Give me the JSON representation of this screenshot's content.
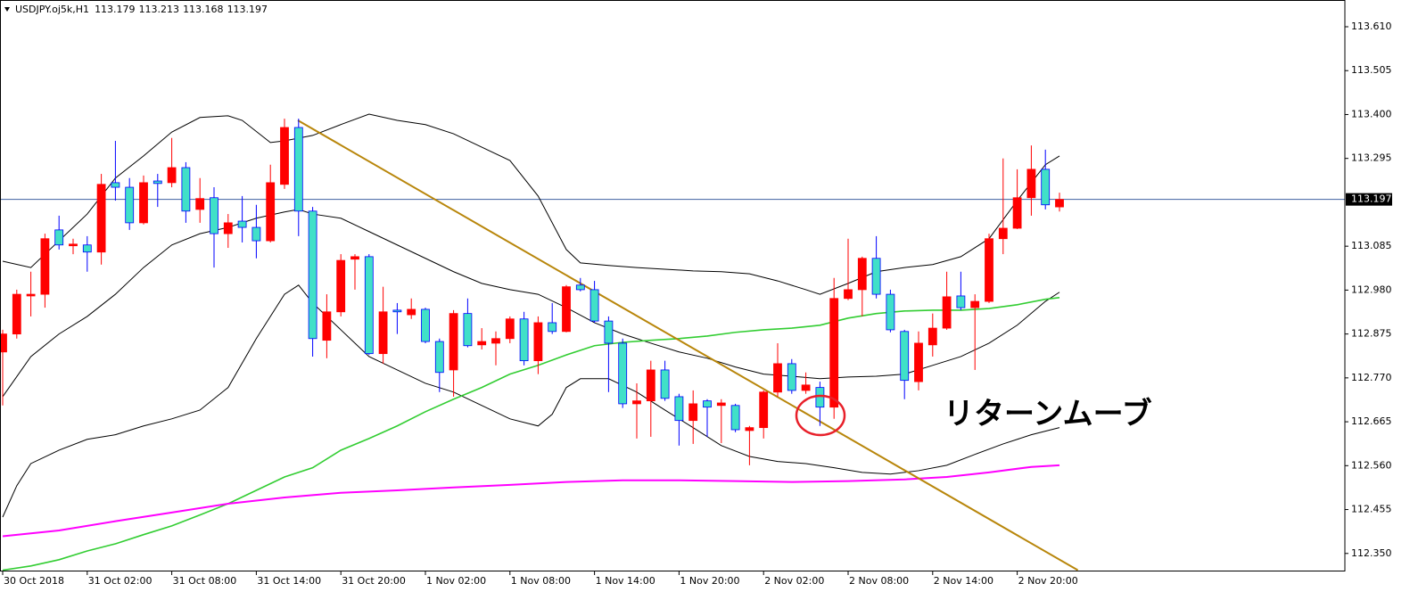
{
  "chart_data": {
    "type": "candlestick",
    "symbol": "USDJPY.oj5k,H1",
    "header_values": [
      113.179,
      113.213,
      113.168,
      113.197
    ],
    "annotation": "リターンムーブ",
    "categories": [
      "30 Oct 2018",
      null,
      null,
      null,
      null,
      null,
      "31 Oct 02:00",
      null,
      null,
      null,
      null,
      null,
      "31 Oct 08:00",
      null,
      null,
      null,
      null,
      null,
      "31 Oct 14:00",
      null,
      null,
      null,
      null,
      null,
      "31 Oct 20:00",
      null,
      null,
      null,
      null,
      null,
      "1 Nov 02:00",
      null,
      null,
      null,
      null,
      null,
      "1 Nov 08:00",
      null,
      null,
      null,
      null,
      null,
      "1 Nov 14:00",
      null,
      null,
      null,
      null,
      null,
      "1 Nov 20:00",
      null,
      null,
      null,
      null,
      null,
      "2 Nov 02:00",
      null,
      null,
      null,
      null,
      null,
      "2 Nov 08:00",
      null,
      null,
      null,
      null,
      null,
      "2 Nov 14:00",
      null,
      null,
      null,
      null,
      null,
      "2 Nov 20:00",
      null,
      null,
      null
    ],
    "open": [
      112.832,
      112.875,
      112.966,
      112.97,
      113.124,
      113.086,
      113.088,
      113.071,
      113.237,
      113.226,
      113.141,
      113.241,
      113.237,
      113.273,
      113.173,
      113.201,
      113.115,
      113.145,
      113.13,
      113.098,
      113.233,
      113.369,
      113.169,
      112.86,
      112.928,
      113.054,
      113.06,
      112.828,
      112.932,
      112.921,
      112.934,
      112.857,
      112.789,
      112.924,
      112.849,
      112.853,
      112.864,
      112.911,
      112.811,
      112.902,
      112.881,
      112.992,
      112.981,
      112.906,
      112.853,
      112.708,
      112.715,
      112.789,
      112.725,
      112.668,
      112.715,
      112.704,
      112.704,
      112.644,
      112.651,
      112.736,
      112.804,
      112.74,
      112.747,
      112.7,
      112.96,
      112.981,
      113.056,
      112.97,
      112.881,
      112.761,
      112.849,
      112.889,
      112.966,
      112.938,
      112.953,
      113.103,
      113.128,
      113.201,
      113.269,
      113.179
    ],
    "high": [
      112.885,
      112.981,
      113.024,
      113.115,
      113.158,
      113.103,
      113.109,
      113.258,
      113.337,
      113.248,
      113.254,
      113.258,
      113.344,
      113.286,
      113.248,
      113.226,
      113.162,
      113.205,
      113.184,
      113.28,
      113.39,
      113.39,
      113.179,
      112.97,
      113.066,
      113.066,
      113.066,
      112.988,
      112.949,
      112.96,
      112.938,
      112.864,
      112.932,
      112.96,
      112.889,
      112.881,
      112.917,
      112.928,
      112.917,
      112.949,
      112.992,
      113.009,
      113.002,
      112.917,
      112.864,
      112.757,
      112.811,
      112.811,
      112.732,
      112.74,
      112.719,
      112.719,
      112.708,
      112.655,
      112.74,
      112.853,
      112.815,
      112.783,
      112.761,
      113.009,
      113.103,
      113.06,
      113.109,
      112.981,
      112.885,
      112.881,
      112.924,
      113.024,
      113.024,
      112.97,
      113.115,
      113.295,
      113.269,
      113.326,
      113.316,
      113.213
    ],
    "low": [
      112.704,
      112.864,
      112.917,
      112.938,
      113.077,
      113.066,
      113.024,
      113.041,
      113.194,
      113.124,
      113.137,
      113.179,
      113.226,
      113.141,
      113.141,
      113.034,
      113.081,
      113.094,
      113.056,
      113.094,
      113.222,
      113.109,
      112.821,
      112.817,
      112.917,
      112.981,
      112.825,
      112.804,
      112.875,
      112.911,
      112.853,
      112.736,
      112.725,
      112.843,
      112.838,
      112.8,
      112.853,
      112.8,
      112.779,
      112.875,
      112.879,
      112.977,
      112.902,
      112.736,
      112.698,
      112.625,
      112.629,
      112.715,
      112.608,
      112.612,
      112.629,
      112.614,
      112.64,
      112.561,
      112.625,
      112.725,
      112.732,
      112.732,
      112.655,
      112.672,
      112.956,
      112.917,
      112.96,
      112.879,
      112.719,
      112.74,
      112.821,
      112.885,
      112.932,
      112.789,
      112.949,
      113.066,
      113.126,
      113.158,
      113.173,
      113.168
    ],
    "close": [
      112.875,
      112.97,
      112.97,
      113.103,
      113.088,
      113.09,
      113.071,
      113.233,
      113.226,
      113.141,
      113.237,
      113.235,
      113.273,
      113.169,
      113.199,
      113.115,
      113.141,
      113.13,
      113.098,
      113.237,
      113.369,
      113.169,
      112.864,
      112.928,
      113.051,
      113.06,
      112.828,
      112.928,
      112.928,
      112.934,
      112.857,
      112.783,
      112.924,
      112.847,
      112.857,
      112.864,
      112.911,
      112.811,
      112.902,
      112.881,
      112.988,
      112.981,
      112.906,
      112.853,
      112.708,
      112.715,
      112.789,
      112.721,
      112.668,
      112.708,
      112.7,
      112.71,
      112.646,
      112.651,
      112.736,
      112.804,
      112.74,
      112.753,
      112.7,
      112.96,
      112.981,
      113.056,
      112.97,
      112.885,
      112.764,
      112.853,
      112.889,
      112.964,
      112.938,
      112.953,
      113.103,
      113.128,
      113.201,
      113.269,
      113.184,
      113.197
    ],
    "up_color": "#ff0000",
    "down_color": "#40e0c8",
    "down_line_color": "#0000ff",
    "ylim": [
      112.309,
      113.674
    ],
    "yticks": [
      {
        "value": 113.61,
        "label": "113.610"
      },
      113.505,
      {
        "value": 113.4,
        "label": "113.400"
      },
      113.295,
      113.085,
      {
        "value": 112.98,
        "label": "112.980"
      },
      112.875,
      {
        "value": 112.77,
        "label": "112.770"
      },
      112.665,
      {
        "value": 112.56,
        "label": "112.560"
      },
      112.455,
      {
        "value": 112.35,
        "label": "112.350"
      }
    ],
    "current_price": 113.197,
    "current_price_color": "#4060a0",
    "overlays": [
      {
        "color": "#000000",
        "width": 1,
        "x": [
          0,
          2,
          4,
          6,
          8,
          10,
          12,
          14,
          16,
          17,
          19,
          20,
          22,
          24,
          26,
          28,
          30,
          32,
          34,
          36,
          38,
          40,
          41,
          43,
          45,
          47,
          49,
          51,
          53,
          55,
          57,
          58,
          60,
          62,
          64,
          66,
          68,
          70,
          72,
          74,
          75
        ],
        "values": [
          113.049,
          113.034,
          113.098,
          113.162,
          113.248,
          113.301,
          113.358,
          113.393,
          113.397,
          113.386,
          113.333,
          113.337,
          113.35,
          113.376,
          113.401,
          113.386,
          113.376,
          113.354,
          113.322,
          113.29,
          113.205,
          113.077,
          113.045,
          113.039,
          113.034,
          113.03,
          113.026,
          113.024,
          113.019,
          113.002,
          112.981,
          112.97,
          112.996,
          113.024,
          113.034,
          113.041,
          113.06,
          113.103,
          113.194,
          113.28,
          113.301
        ]
      },
      {
        "color": "#000000",
        "width": 1,
        "x": [
          0,
          2,
          4,
          6,
          8,
          10,
          12,
          14,
          16,
          18,
          20,
          21,
          22,
          24,
          26,
          28,
          30,
          32,
          34,
          36,
          38,
          40,
          42,
          44,
          46,
          48,
          50,
          52,
          54,
          56,
          58,
          60,
          62,
          64,
          66,
          68,
          70,
          72,
          74,
          75
        ],
        "values": [
          112.725,
          112.821,
          112.875,
          112.917,
          112.97,
          113.034,
          113.088,
          113.115,
          113.13,
          113.152,
          113.167,
          113.173,
          113.162,
          113.152,
          113.12,
          113.088,
          113.056,
          113.024,
          112.996,
          112.981,
          112.97,
          112.938,
          112.902,
          112.875,
          112.853,
          112.832,
          112.817,
          112.796,
          112.779,
          112.774,
          112.768,
          112.772,
          112.774,
          112.779,
          112.8,
          112.821,
          112.853,
          112.896,
          112.953,
          112.975
        ]
      },
      {
        "color": "#000000",
        "width": 1,
        "x": [
          0,
          1,
          2,
          4,
          6,
          8,
          10,
          12,
          14,
          16,
          18,
          20,
          21,
          22,
          24,
          26,
          28,
          30,
          32,
          34,
          36,
          38,
          39,
          40,
          41,
          43,
          45,
          47,
          49,
          51,
          53,
          55,
          57,
          59,
          61,
          63,
          65,
          67,
          69,
          71,
          73,
          75
        ],
        "values": [
          112.437,
          112.512,
          112.565,
          112.597,
          112.623,
          112.634,
          112.655,
          112.672,
          112.693,
          112.747,
          112.864,
          112.97,
          112.992,
          112.949,
          112.885,
          112.821,
          112.789,
          112.757,
          112.736,
          112.704,
          112.672,
          112.655,
          112.683,
          112.747,
          112.768,
          112.768,
          112.736,
          112.693,
          112.651,
          112.608,
          112.582,
          112.57,
          112.565,
          112.555,
          112.544,
          112.54,
          112.548,
          112.561,
          112.587,
          112.612,
          112.634,
          112.651
        ]
      },
      {
        "color": "#32cd32",
        "width": 1.6,
        "x": [
          0,
          2,
          4,
          6,
          8,
          10,
          12,
          14,
          16,
          18,
          20,
          22,
          24,
          26,
          28,
          30,
          32,
          34,
          36,
          38,
          40,
          42,
          44,
          46,
          48,
          50,
          52,
          54,
          56,
          58,
          60,
          62,
          64,
          66,
          68,
          70,
          72,
          74,
          75
        ],
        "values": [
          112.31,
          112.32,
          112.335,
          112.356,
          112.373,
          112.395,
          112.416,
          112.442,
          112.469,
          112.501,
          112.533,
          112.555,
          112.597,
          112.625,
          112.655,
          112.689,
          112.719,
          112.747,
          112.779,
          112.8,
          112.825,
          112.847,
          112.855,
          112.86,
          112.864,
          112.87,
          112.879,
          112.885,
          112.889,
          112.896,
          112.913,
          112.924,
          112.93,
          112.932,
          112.932,
          112.936,
          112.945,
          112.958,
          112.962
        ]
      },
      {
        "color": "#ff00ff",
        "width": 2,
        "x": [
          0,
          4,
          8,
          12,
          16,
          20,
          24,
          28,
          32,
          36,
          40,
          44,
          48,
          52,
          56,
          60,
          64,
          67,
          70,
          73,
          75
        ],
        "values": [
          112.391,
          112.405,
          112.427,
          112.448,
          112.469,
          112.484,
          112.495,
          112.501,
          112.508,
          112.514,
          112.521,
          112.525,
          112.525,
          112.523,
          112.521,
          112.523,
          112.527,
          112.533,
          112.544,
          112.557,
          112.561
        ]
      },
      {
        "color": "#b8860b",
        "width": 2,
        "x": [
          20.95,
          76.3
        ],
        "values": [
          113.386,
          112.31
        ]
      }
    ]
  }
}
